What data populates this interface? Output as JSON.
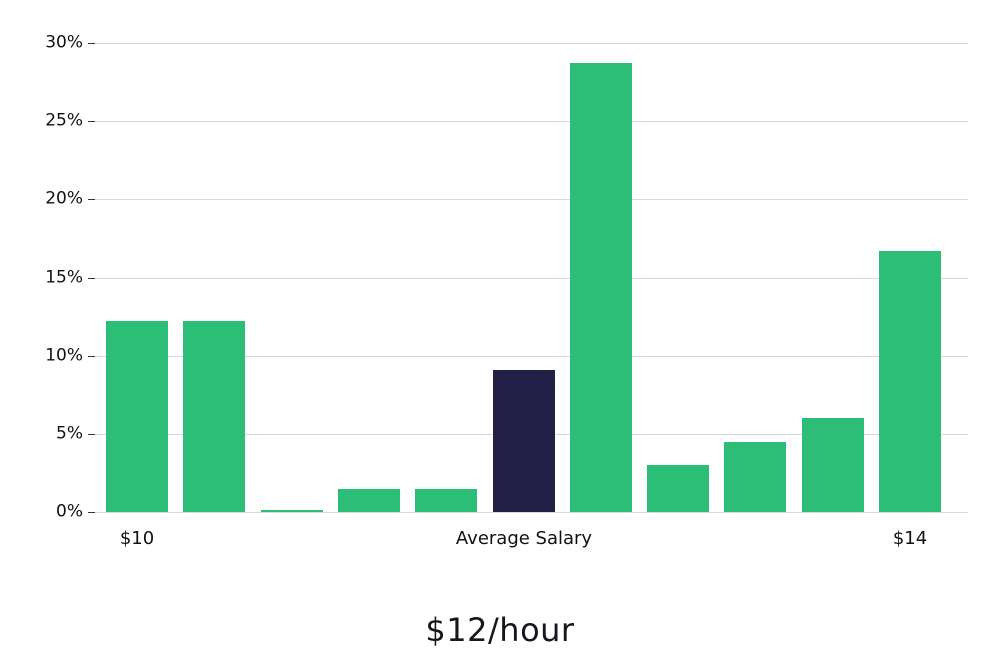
{
  "chart_data": {
    "type": "bar",
    "title": "$12/hour",
    "xlabel": "",
    "ylabel": "",
    "ylim": [
      0,
      30
    ],
    "grid": true,
    "legend_position": "none",
    "yticks": [
      0,
      5,
      10,
      15,
      20,
      25,
      30
    ],
    "ytick_labels": [
      "0%",
      "5%",
      "10%",
      "15%",
      "20%",
      "25%",
      "30%"
    ],
    "values": [
      12.2,
      12.2,
      0.1,
      1.5,
      1.5,
      9.1,
      28.7,
      3.0,
      4.5,
      6.0,
      16.7
    ],
    "highlight_index": 5,
    "xtick_labels": [
      {
        "index": 0,
        "label": "$10"
      },
      {
        "index": 5,
        "label": "Average Salary"
      },
      {
        "index": 10,
        "label": "$14"
      }
    ],
    "colors": {
      "bar": "#2cbd76",
      "highlight": "#232048",
      "gridline": "#d8d8d8",
      "tick": "#333333",
      "text": "#111111"
    }
  }
}
